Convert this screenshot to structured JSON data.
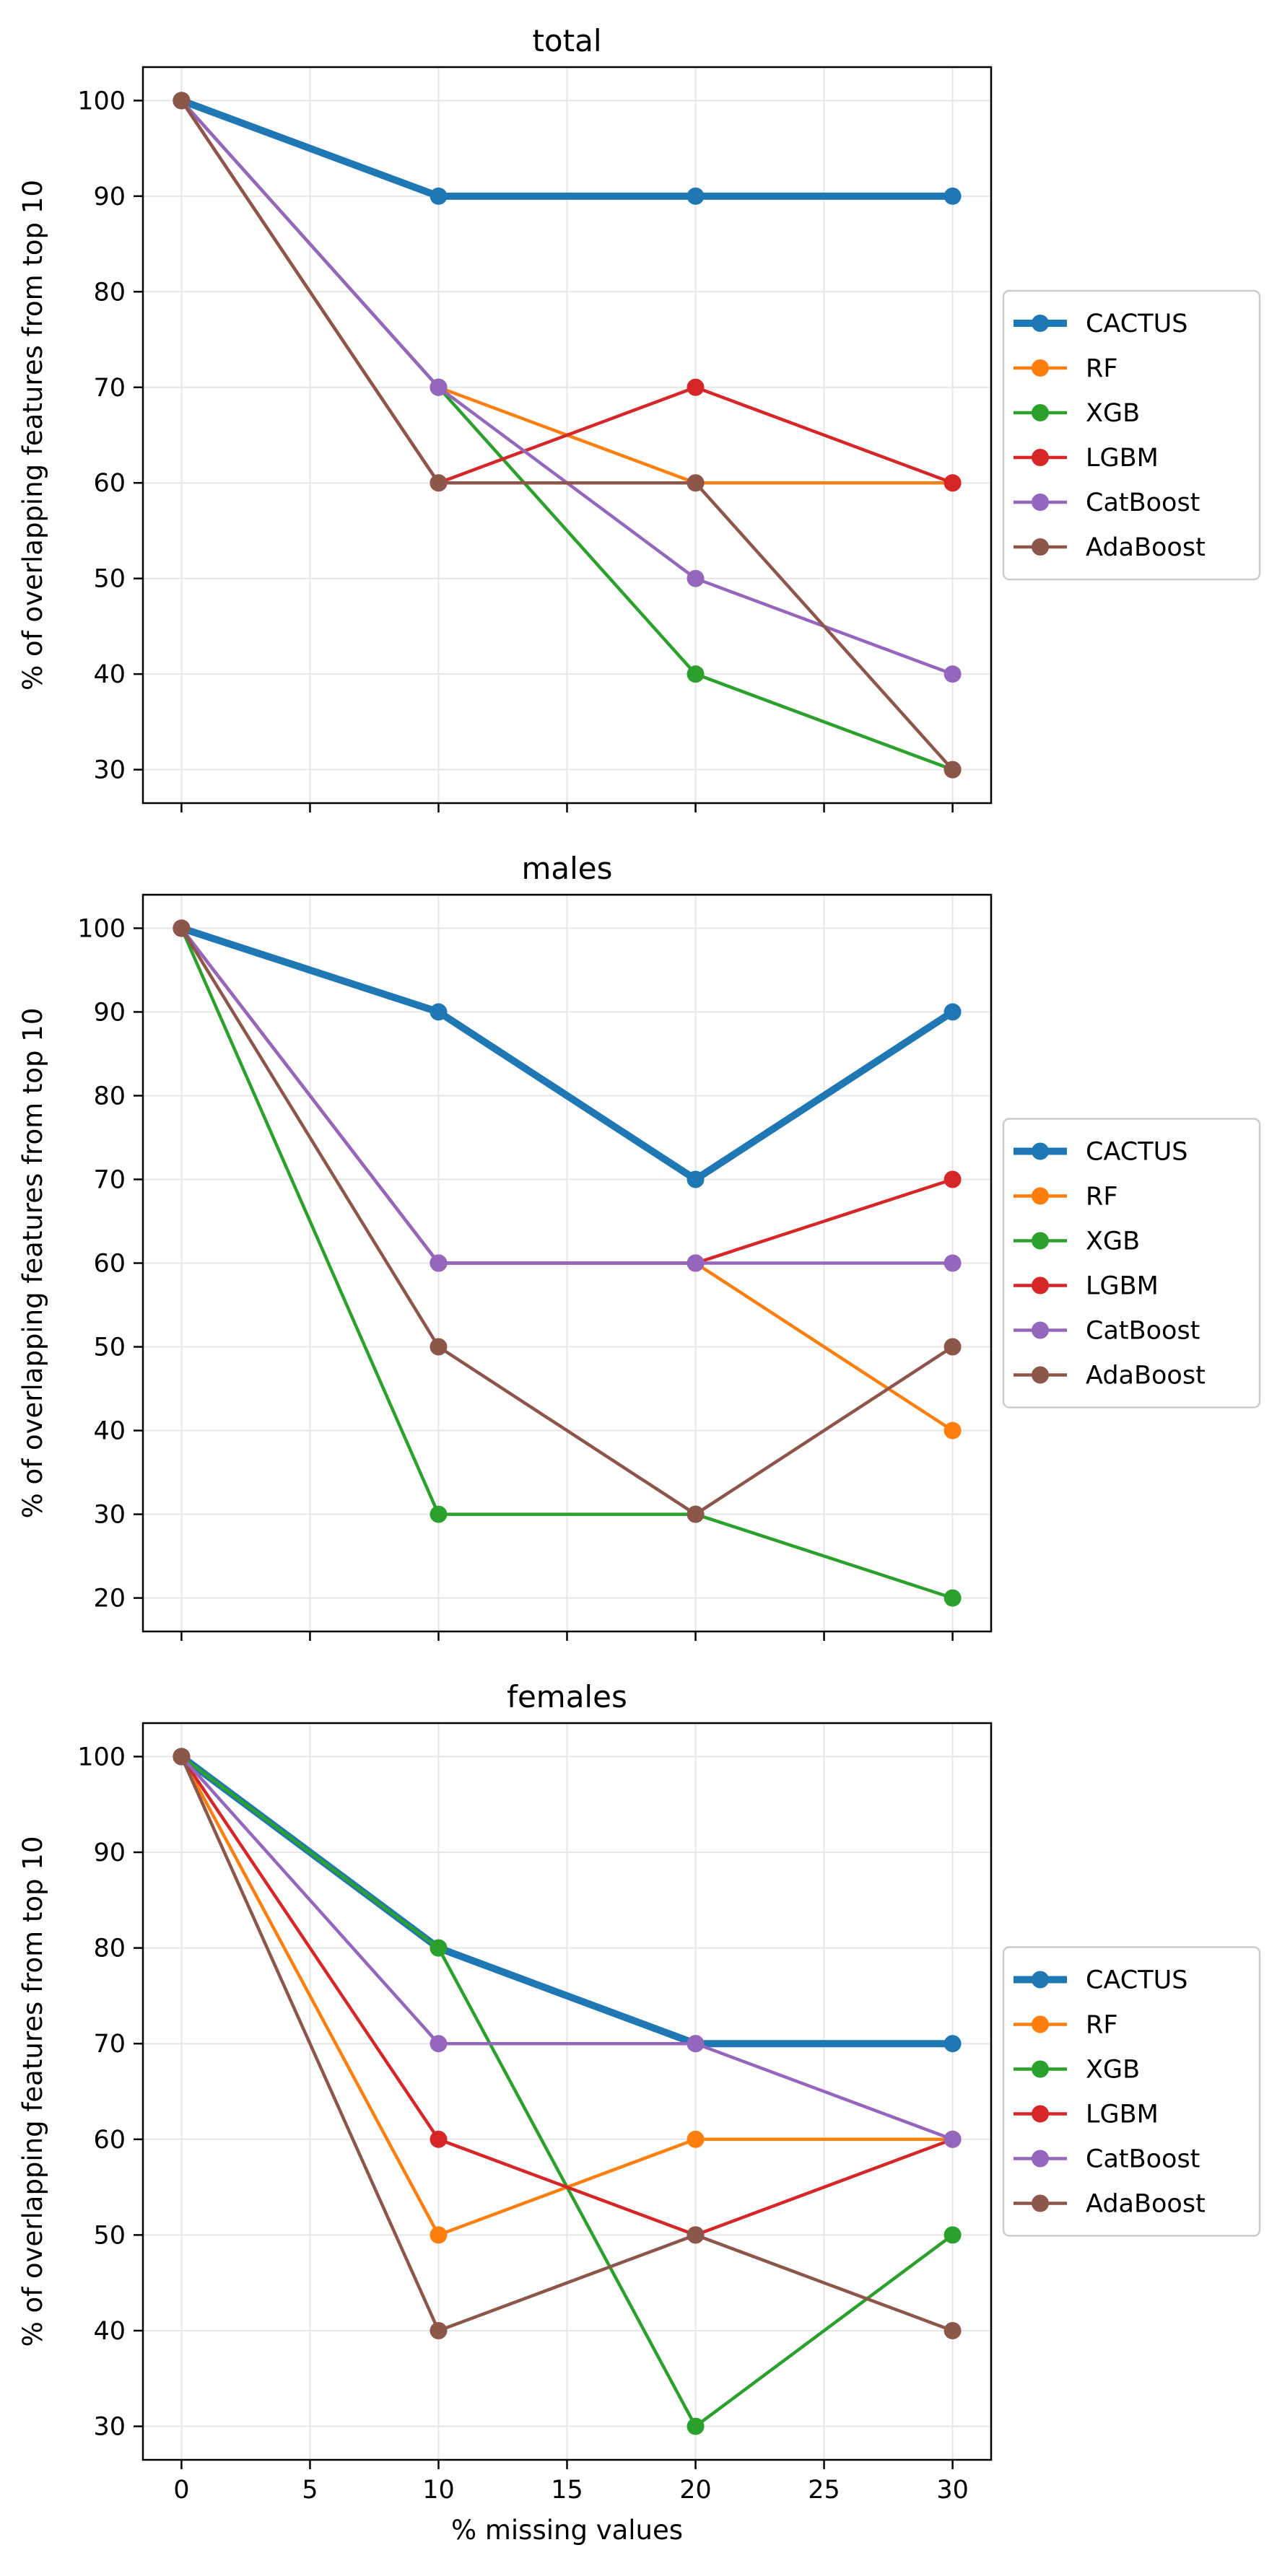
{
  "figure": {
    "xlabel": "% missing values"
  },
  "colors": {
    "CACTUS": "#1f77b4",
    "RF": "#ff7f0e",
    "XGB": "#2ca02c",
    "LGBM": "#d62728",
    "CatBoost": "#9467bd",
    "AdaBoost": "#8c564b",
    "grid": "#e6e6e6",
    "axes": "#000000"
  },
  "chart_data": [
    {
      "type": "line",
      "title": "total",
      "ylabel": "% of overlapping features from top 10",
      "xlabel": "",
      "x": [
        0,
        10,
        20,
        30
      ],
      "xlim": [
        -1.5,
        31.5
      ],
      "ylim": [
        26.5,
        103.5
      ],
      "xticks": [
        0,
        5,
        10,
        15,
        20,
        25,
        30
      ],
      "yticks": [
        30,
        40,
        50,
        60,
        70,
        80,
        90,
        100
      ],
      "show_xtick_labels": false,
      "grid": true,
      "legend": "center-right-outside",
      "series": [
        {
          "name": "CACTUS",
          "values": [
            100,
            90,
            90,
            90
          ]
        },
        {
          "name": "RF",
          "values": [
            100,
            70,
            60,
            60
          ]
        },
        {
          "name": "XGB",
          "values": [
            100,
            70,
            40,
            30
          ]
        },
        {
          "name": "LGBM",
          "values": [
            100,
            60,
            70,
            60
          ]
        },
        {
          "name": "CatBoost",
          "values": [
            100,
            70,
            50,
            40
          ]
        },
        {
          "name": "AdaBoost",
          "values": [
            100,
            60,
            60,
            30
          ]
        }
      ]
    },
    {
      "type": "line",
      "title": "males",
      "ylabel": "% of overlapping features from top 10",
      "xlabel": "",
      "x": [
        0,
        10,
        20,
        30
      ],
      "xlim": [
        -1.5,
        31.5
      ],
      "ylim": [
        16,
        104
      ],
      "xticks": [
        0,
        5,
        10,
        15,
        20,
        25,
        30
      ],
      "yticks": [
        20,
        30,
        40,
        50,
        60,
        70,
        80,
        90,
        100
      ],
      "show_xtick_labels": false,
      "grid": true,
      "legend": "center-right-outside",
      "series": [
        {
          "name": "CACTUS",
          "values": [
            100,
            90,
            70,
            90
          ]
        },
        {
          "name": "RF",
          "values": [
            100,
            60,
            60,
            40
          ]
        },
        {
          "name": "XGB",
          "values": [
            100,
            30,
            30,
            20
          ]
        },
        {
          "name": "LGBM",
          "values": [
            100,
            60,
            60,
            70
          ]
        },
        {
          "name": "CatBoost",
          "values": [
            100,
            60,
            60,
            60
          ]
        },
        {
          "name": "AdaBoost",
          "values": [
            100,
            50,
            30,
            50
          ]
        }
      ]
    },
    {
      "type": "line",
      "title": "females",
      "ylabel": "% of overlapping features from top 10",
      "xlabel": "% missing values",
      "x": [
        0,
        10,
        20,
        30
      ],
      "xlim": [
        -1.5,
        31.5
      ],
      "ylim": [
        26.5,
        103.5
      ],
      "xticks": [
        0,
        5,
        10,
        15,
        20,
        25,
        30
      ],
      "yticks": [
        30,
        40,
        50,
        60,
        70,
        80,
        90,
        100
      ],
      "show_xtick_labels": true,
      "grid": true,
      "legend": "center-right-outside",
      "series": [
        {
          "name": "CACTUS",
          "values": [
            100,
            80,
            70,
            70
          ]
        },
        {
          "name": "RF",
          "values": [
            100,
            50,
            60,
            60
          ]
        },
        {
          "name": "XGB",
          "values": [
            100,
            80,
            30,
            50
          ]
        },
        {
          "name": "LGBM",
          "values": [
            100,
            60,
            50,
            60
          ]
        },
        {
          "name": "CatBoost",
          "values": [
            100,
            70,
            70,
            60
          ]
        },
        {
          "name": "AdaBoost",
          "values": [
            100,
            40,
            50,
            40
          ]
        }
      ]
    }
  ]
}
